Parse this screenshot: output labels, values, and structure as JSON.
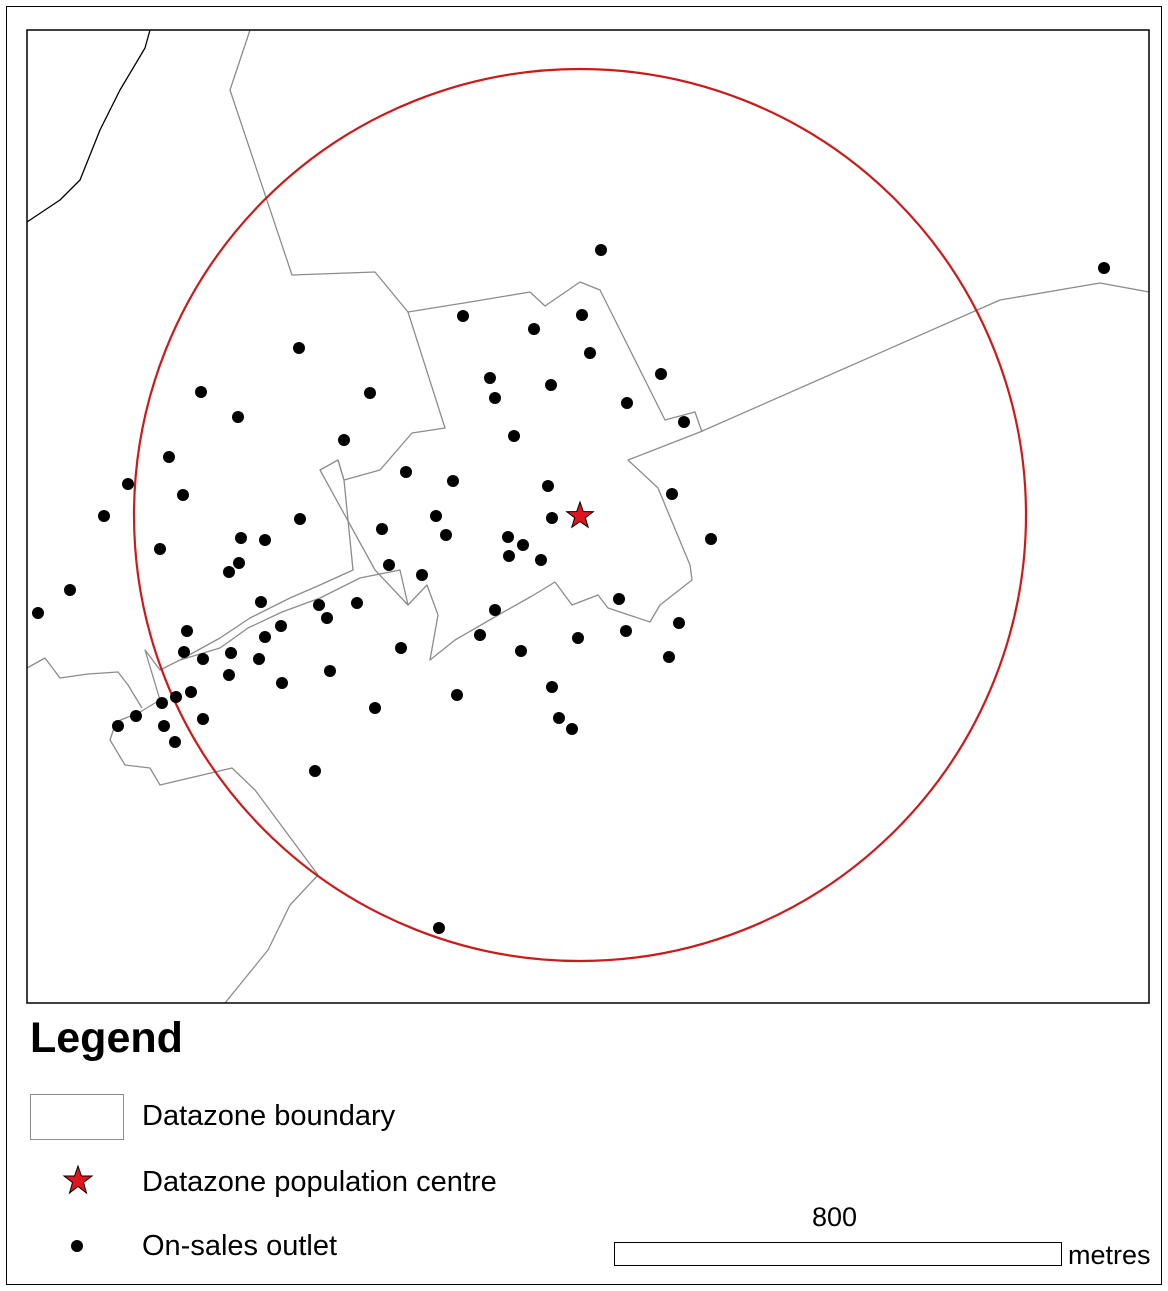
{
  "map": {
    "boundary_color": "#8c8c8c",
    "buffer_color": "#cc1a1a",
    "outlet_color": "#000000",
    "centre_color": "#e0141e"
  },
  "legend": {
    "title": "Legend",
    "items": [
      {
        "label": "Datazone boundary",
        "symbol": "boundary-box"
      },
      {
        "label": "Datazone population centre",
        "symbol": "red-star-icon"
      },
      {
        "label": "On-sales outlet",
        "symbol": "black-dot-icon"
      }
    ]
  },
  "scale_bar": {
    "value": "800",
    "units": "metres"
  }
}
